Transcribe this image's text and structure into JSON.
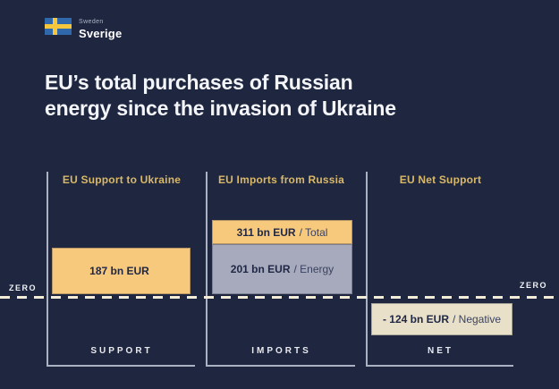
{
  "logo": {
    "country_en": "Sweden",
    "country_sv": "Sverige"
  },
  "title": {
    "line1": "EU’s total purchases of Russian",
    "line2": "energy since the invasion of Ukraine"
  },
  "colors": {
    "background": "#1e2640",
    "accent_gold": "#d9b868",
    "bar_gold": "#f7c97d",
    "bar_gray": "#a7aabc",
    "bar_cream": "#e8e0c8",
    "bracket_line": "#a9b1c2",
    "dashed_zero_line": "#f3ecd9",
    "flag_blue": "#2f69ac",
    "flag_yellow": "#f6c73c"
  },
  "chart_data": {
    "type": "bar",
    "title": "EU’s total purchases of Russian energy since the invasion of Ukraine",
    "unit": "bn EUR",
    "baseline_label": "ZERO",
    "ylim": [
      -150,
      350
    ],
    "grid": false,
    "groups": [
      {
        "header": "EU Support to Ukraine",
        "axis_label": "SUPPORT",
        "bars": [
          {
            "value": 187,
            "label_value": "187 bn EUR",
            "label_suffix": "",
            "color": "gold"
          }
        ]
      },
      {
        "header": "EU Imports from Russia",
        "axis_label": "IMPORTS",
        "bars": [
          {
            "value": 311,
            "label_value": "311 bn EUR",
            "label_suffix": "/ Total",
            "color": "gold"
          },
          {
            "value": 201,
            "label_value": "201 bn EUR",
            "label_suffix": "/ Energy",
            "color": "gray"
          }
        ]
      },
      {
        "header": "EU Net Support",
        "axis_label": "NET",
        "bars": [
          {
            "value": -124,
            "label_value": "- 124 bn EUR",
            "label_suffix": "/ Negative",
            "color": "cream"
          }
        ]
      }
    ]
  }
}
